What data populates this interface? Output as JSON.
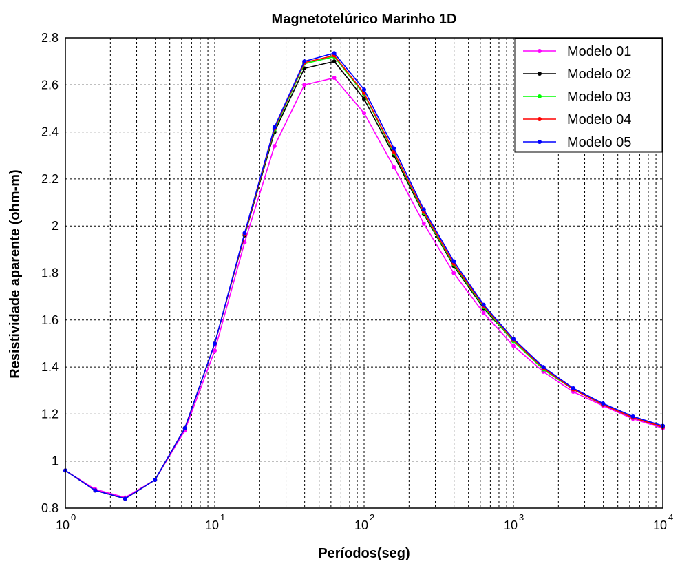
{
  "chart_data": {
    "type": "line",
    "title": "Magnetotelúrico Marinho 1D",
    "xlabel": "Períodos(seg)",
    "ylabel": "Resistividade aparente (ohm-m)",
    "x_scale": "log",
    "xlim": [
      1,
      10000
    ],
    "ylim": [
      0.8,
      2.8
    ],
    "grid": true,
    "legend_position": "top-right",
    "x_ticks": [
      {
        "value": 1,
        "base": "10",
        "exp": "0"
      },
      {
        "value": 10,
        "base": "10",
        "exp": "1"
      },
      {
        "value": 100,
        "base": "10",
        "exp": "2"
      },
      {
        "value": 1000,
        "base": "10",
        "exp": "3"
      },
      {
        "value": 10000,
        "base": "10",
        "exp": "4"
      }
    ],
    "y_ticks": [
      "0.8",
      "1",
      "1.2",
      "1.4",
      "1.6",
      "1.8",
      "2",
      "2.2",
      "2.4",
      "2.6",
      "2.8"
    ],
    "x": [
      1,
      1.585,
      2.512,
      3.981,
      6.31,
      10,
      15.85,
      25.12,
      39.81,
      63.1,
      100,
      158.5,
      251.2,
      398.1,
      631,
      1000,
      1585,
      2512,
      3981,
      6310,
      10000
    ],
    "series": [
      {
        "name": "Modelo 01",
        "color": "#ff00ff",
        "values": [
          0.96,
          0.88,
          0.845,
          0.92,
          1.13,
          1.47,
          1.93,
          2.34,
          2.6,
          2.63,
          2.48,
          2.25,
          2.01,
          1.8,
          1.63,
          1.49,
          1.38,
          1.295,
          1.235,
          1.18,
          1.14
        ]
      },
      {
        "name": "Modelo 02",
        "color": "#000000",
        "values": [
          0.96,
          0.875,
          0.84,
          0.92,
          1.14,
          1.5,
          1.96,
          2.4,
          2.67,
          2.7,
          2.54,
          2.3,
          2.05,
          1.83,
          1.65,
          1.51,
          1.39,
          1.305,
          1.24,
          1.185,
          1.145
        ]
      },
      {
        "name": "Modelo 03",
        "color": "#00ff00",
        "values": [
          0.96,
          0.875,
          0.84,
          0.92,
          1.14,
          1.5,
          1.965,
          2.41,
          2.69,
          2.72,
          2.56,
          2.31,
          2.055,
          1.835,
          1.655,
          1.51,
          1.39,
          1.305,
          1.24,
          1.185,
          1.145
        ]
      },
      {
        "name": "Modelo 04",
        "color": "#ff0000",
        "values": [
          0.96,
          0.875,
          0.84,
          0.92,
          1.14,
          1.5,
          1.965,
          2.415,
          2.695,
          2.725,
          2.565,
          2.315,
          2.06,
          1.84,
          1.66,
          1.515,
          1.395,
          1.305,
          1.24,
          1.185,
          1.145
        ]
      },
      {
        "name": "Modelo 05",
        "color": "#0000ff",
        "values": [
          0.96,
          0.875,
          0.84,
          0.92,
          1.14,
          1.5,
          1.97,
          2.42,
          2.7,
          2.735,
          2.58,
          2.33,
          2.07,
          1.85,
          1.665,
          1.52,
          1.4,
          1.31,
          1.245,
          1.19,
          1.15
        ]
      }
    ]
  }
}
